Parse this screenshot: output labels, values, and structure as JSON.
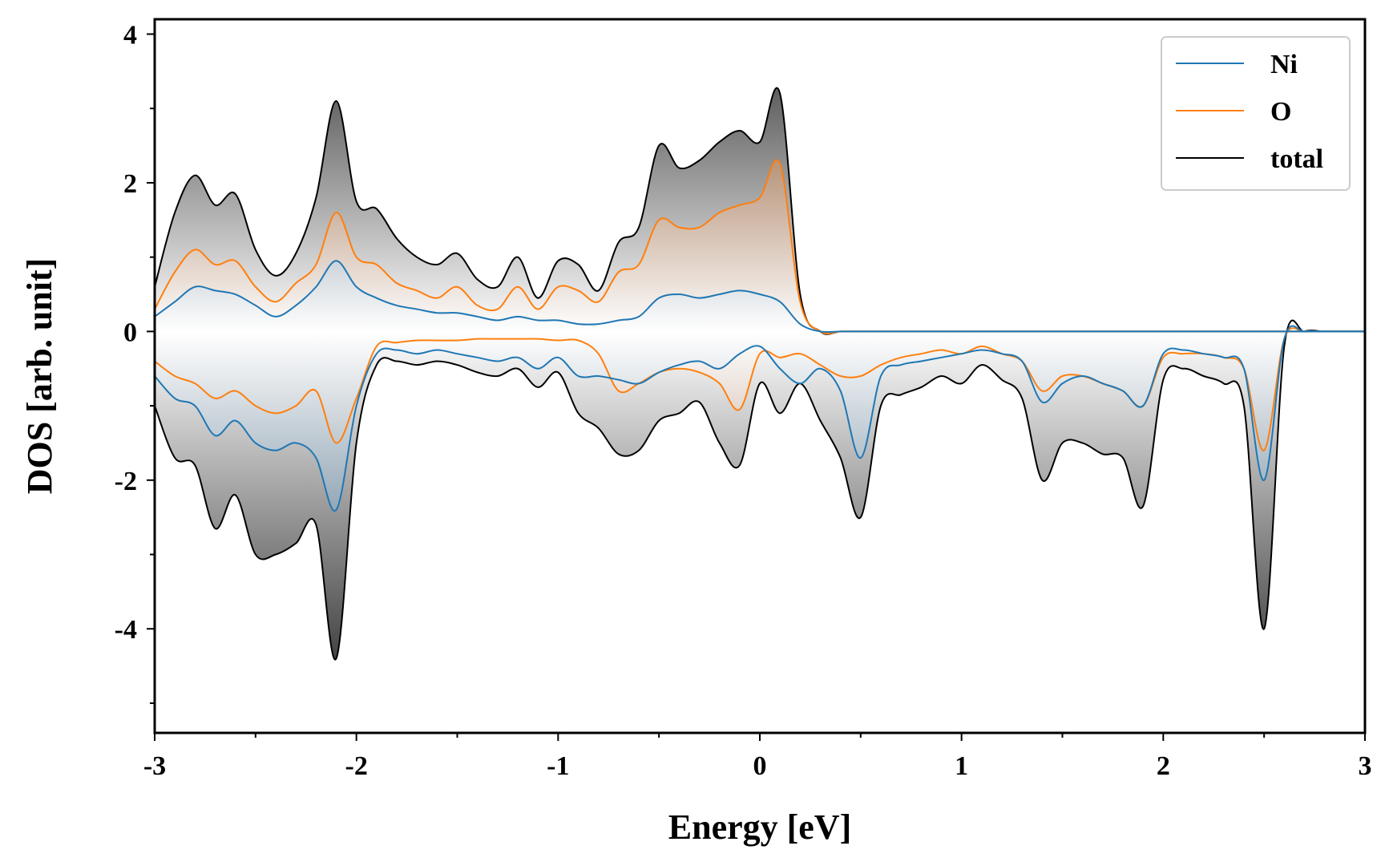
{
  "chart_data": {
    "type": "area",
    "title": "",
    "xlabel": "Energy [eV]",
    "ylabel": "DOS [arb. unit]",
    "xlim": [
      -3,
      3
    ],
    "ylim": [
      -5.4,
      4.2
    ],
    "xticks": [
      -3,
      -2,
      -1,
      0,
      1,
      2,
      3
    ],
    "xtick_labels": [
      "-3",
      "-2",
      "-1",
      "0",
      "1",
      "2",
      "3"
    ],
    "yticks": [
      -4,
      -2,
      0,
      2,
      4
    ],
    "ytick_labels": [
      "-4",
      "-2",
      "0",
      "2",
      "4"
    ],
    "legend_position": "top-right",
    "x": [
      -3.0,
      -2.9,
      -2.8,
      -2.7,
      -2.6,
      -2.5,
      -2.4,
      -2.3,
      -2.2,
      -2.1,
      -2.0,
      -1.9,
      -1.8,
      -1.7,
      -1.6,
      -1.5,
      -1.4,
      -1.3,
      -1.2,
      -1.1,
      -1.0,
      -0.9,
      -0.8,
      -0.7,
      -0.6,
      -0.5,
      -0.4,
      -0.3,
      -0.2,
      -0.1,
      0.0,
      0.1,
      0.2,
      0.3,
      0.4,
      0.5,
      0.6,
      0.7,
      0.8,
      0.9,
      1.0,
      1.1,
      1.2,
      1.3,
      1.4,
      1.5,
      1.6,
      1.7,
      1.8,
      1.9,
      2.0,
      2.1,
      2.2,
      2.3,
      2.4,
      2.5,
      2.6,
      2.7,
      2.8,
      2.9,
      3.0
    ],
    "series": [
      {
        "name": "Ni",
        "color": "#1f77b4",
        "spin_up": [
          0.2,
          0.4,
          0.6,
          0.55,
          0.5,
          0.35,
          0.2,
          0.35,
          0.6,
          0.95,
          0.6,
          0.45,
          0.35,
          0.3,
          0.25,
          0.25,
          0.2,
          0.15,
          0.2,
          0.15,
          0.15,
          0.1,
          0.1,
          0.15,
          0.2,
          0.45,
          0.5,
          0.45,
          0.5,
          0.55,
          0.5,
          0.4,
          0.1,
          0.0,
          0.0,
          0.0,
          0.0,
          0.0,
          0.0,
          0.0,
          0.0,
          0.0,
          0.0,
          0.0,
          0.0,
          0.0,
          0.0,
          0.0,
          0.0,
          0.0,
          0.0,
          0.0,
          0.0,
          0.0,
          0.0,
          0.0,
          0.0,
          0.0,
          0.0,
          0.0,
          0.0
        ],
        "spin_down": [
          -0.6,
          -0.9,
          -1.0,
          -1.4,
          -1.2,
          -1.5,
          -1.6,
          -1.5,
          -1.7,
          -2.4,
          -1.0,
          -0.3,
          -0.25,
          -0.3,
          -0.25,
          -0.3,
          -0.35,
          -0.4,
          -0.35,
          -0.5,
          -0.35,
          -0.6,
          -0.6,
          -0.65,
          -0.7,
          -0.55,
          -0.45,
          -0.4,
          -0.5,
          -0.3,
          -0.2,
          -0.5,
          -0.7,
          -0.5,
          -0.8,
          -1.7,
          -0.6,
          -0.45,
          -0.4,
          -0.35,
          -0.3,
          -0.25,
          -0.3,
          -0.4,
          -0.95,
          -0.7,
          -0.6,
          -0.7,
          -0.8,
          -1.0,
          -0.3,
          -0.25,
          -0.3,
          -0.35,
          -0.5,
          -2.0,
          -0.1,
          0.0,
          0.0,
          0.0,
          0.0
        ]
      },
      {
        "name": "O",
        "color": "#ff7f0e",
        "spin_up": [
          0.3,
          0.8,
          1.1,
          0.9,
          0.95,
          0.6,
          0.4,
          0.65,
          0.9,
          1.6,
          1.0,
          0.9,
          0.65,
          0.55,
          0.45,
          0.6,
          0.35,
          0.3,
          0.6,
          0.3,
          0.6,
          0.55,
          0.4,
          0.8,
          0.9,
          1.5,
          1.4,
          1.4,
          1.6,
          1.7,
          1.8,
          2.25,
          0.4,
          0.0,
          0.0,
          0.0,
          0.0,
          0.0,
          0.0,
          0.0,
          0.0,
          0.0,
          0.0,
          0.0,
          0.0,
          0.0,
          0.0,
          0.0,
          0.0,
          0.0,
          0.0,
          0.0,
          0.0,
          0.0,
          0.0,
          0.0,
          0.0,
          0.0,
          0.0,
          0.0,
          0.0
        ],
        "spin_down": [
          -0.4,
          -0.6,
          -0.7,
          -0.9,
          -0.8,
          -1.0,
          -1.1,
          -1.0,
          -0.8,
          -1.5,
          -0.9,
          -0.2,
          -0.15,
          -0.12,
          -0.12,
          -0.12,
          -0.1,
          -0.1,
          -0.1,
          -0.1,
          -0.12,
          -0.12,
          -0.3,
          -0.8,
          -0.7,
          -0.55,
          -0.5,
          -0.55,
          -0.7,
          -1.05,
          -0.3,
          -0.35,
          -0.3,
          -0.45,
          -0.6,
          -0.6,
          -0.45,
          -0.35,
          -0.3,
          -0.25,
          -0.3,
          -0.2,
          -0.3,
          -0.4,
          -0.8,
          -0.6,
          -0.6,
          -0.7,
          -0.8,
          -1.0,
          -0.35,
          -0.3,
          -0.3,
          -0.35,
          -0.5,
          -1.6,
          -0.1,
          0.0,
          0.0,
          0.0,
          0.0
        ]
      },
      {
        "name": "total",
        "color": "#000000",
        "spin_up": [
          0.6,
          1.6,
          2.1,
          1.7,
          1.85,
          1.1,
          0.75,
          1.05,
          1.8,
          3.1,
          1.75,
          1.65,
          1.25,
          1.0,
          0.9,
          1.05,
          0.7,
          0.6,
          1.0,
          0.45,
          0.95,
          0.9,
          0.55,
          1.2,
          1.4,
          2.5,
          2.2,
          2.3,
          2.55,
          2.7,
          2.55,
          3.2,
          0.5,
          0.0,
          0.0,
          0.0,
          0.0,
          0.0,
          0.0,
          0.0,
          0.0,
          0.0,
          0.0,
          0.0,
          0.0,
          0.0,
          0.0,
          0.0,
          0.0,
          0.0,
          0.0,
          0.0,
          0.0,
          0.0,
          0.0,
          0.0,
          0.0,
          0.0,
          0.0,
          0.0,
          0.0
        ],
        "spin_down": [
          -1.0,
          -1.7,
          -1.8,
          -2.65,
          -2.2,
          -3.0,
          -3.0,
          -2.85,
          -2.6,
          -4.4,
          -1.5,
          -0.45,
          -0.4,
          -0.45,
          -0.4,
          -0.45,
          -0.55,
          -0.6,
          -0.5,
          -0.75,
          -0.55,
          -1.1,
          -1.3,
          -1.65,
          -1.6,
          -1.2,
          -1.1,
          -0.95,
          -1.5,
          -1.8,
          -0.7,
          -1.1,
          -0.7,
          -1.2,
          -1.7,
          -2.5,
          -1.0,
          -0.85,
          -0.75,
          -0.6,
          -0.7,
          -0.45,
          -0.65,
          -0.9,
          -2.0,
          -1.5,
          -1.5,
          -1.65,
          -1.7,
          -2.35,
          -0.65,
          -0.5,
          -0.6,
          -0.7,
          -1.0,
          -4.0,
          -0.2,
          0.0,
          0.0,
          0.0,
          0.0
        ]
      }
    ]
  }
}
